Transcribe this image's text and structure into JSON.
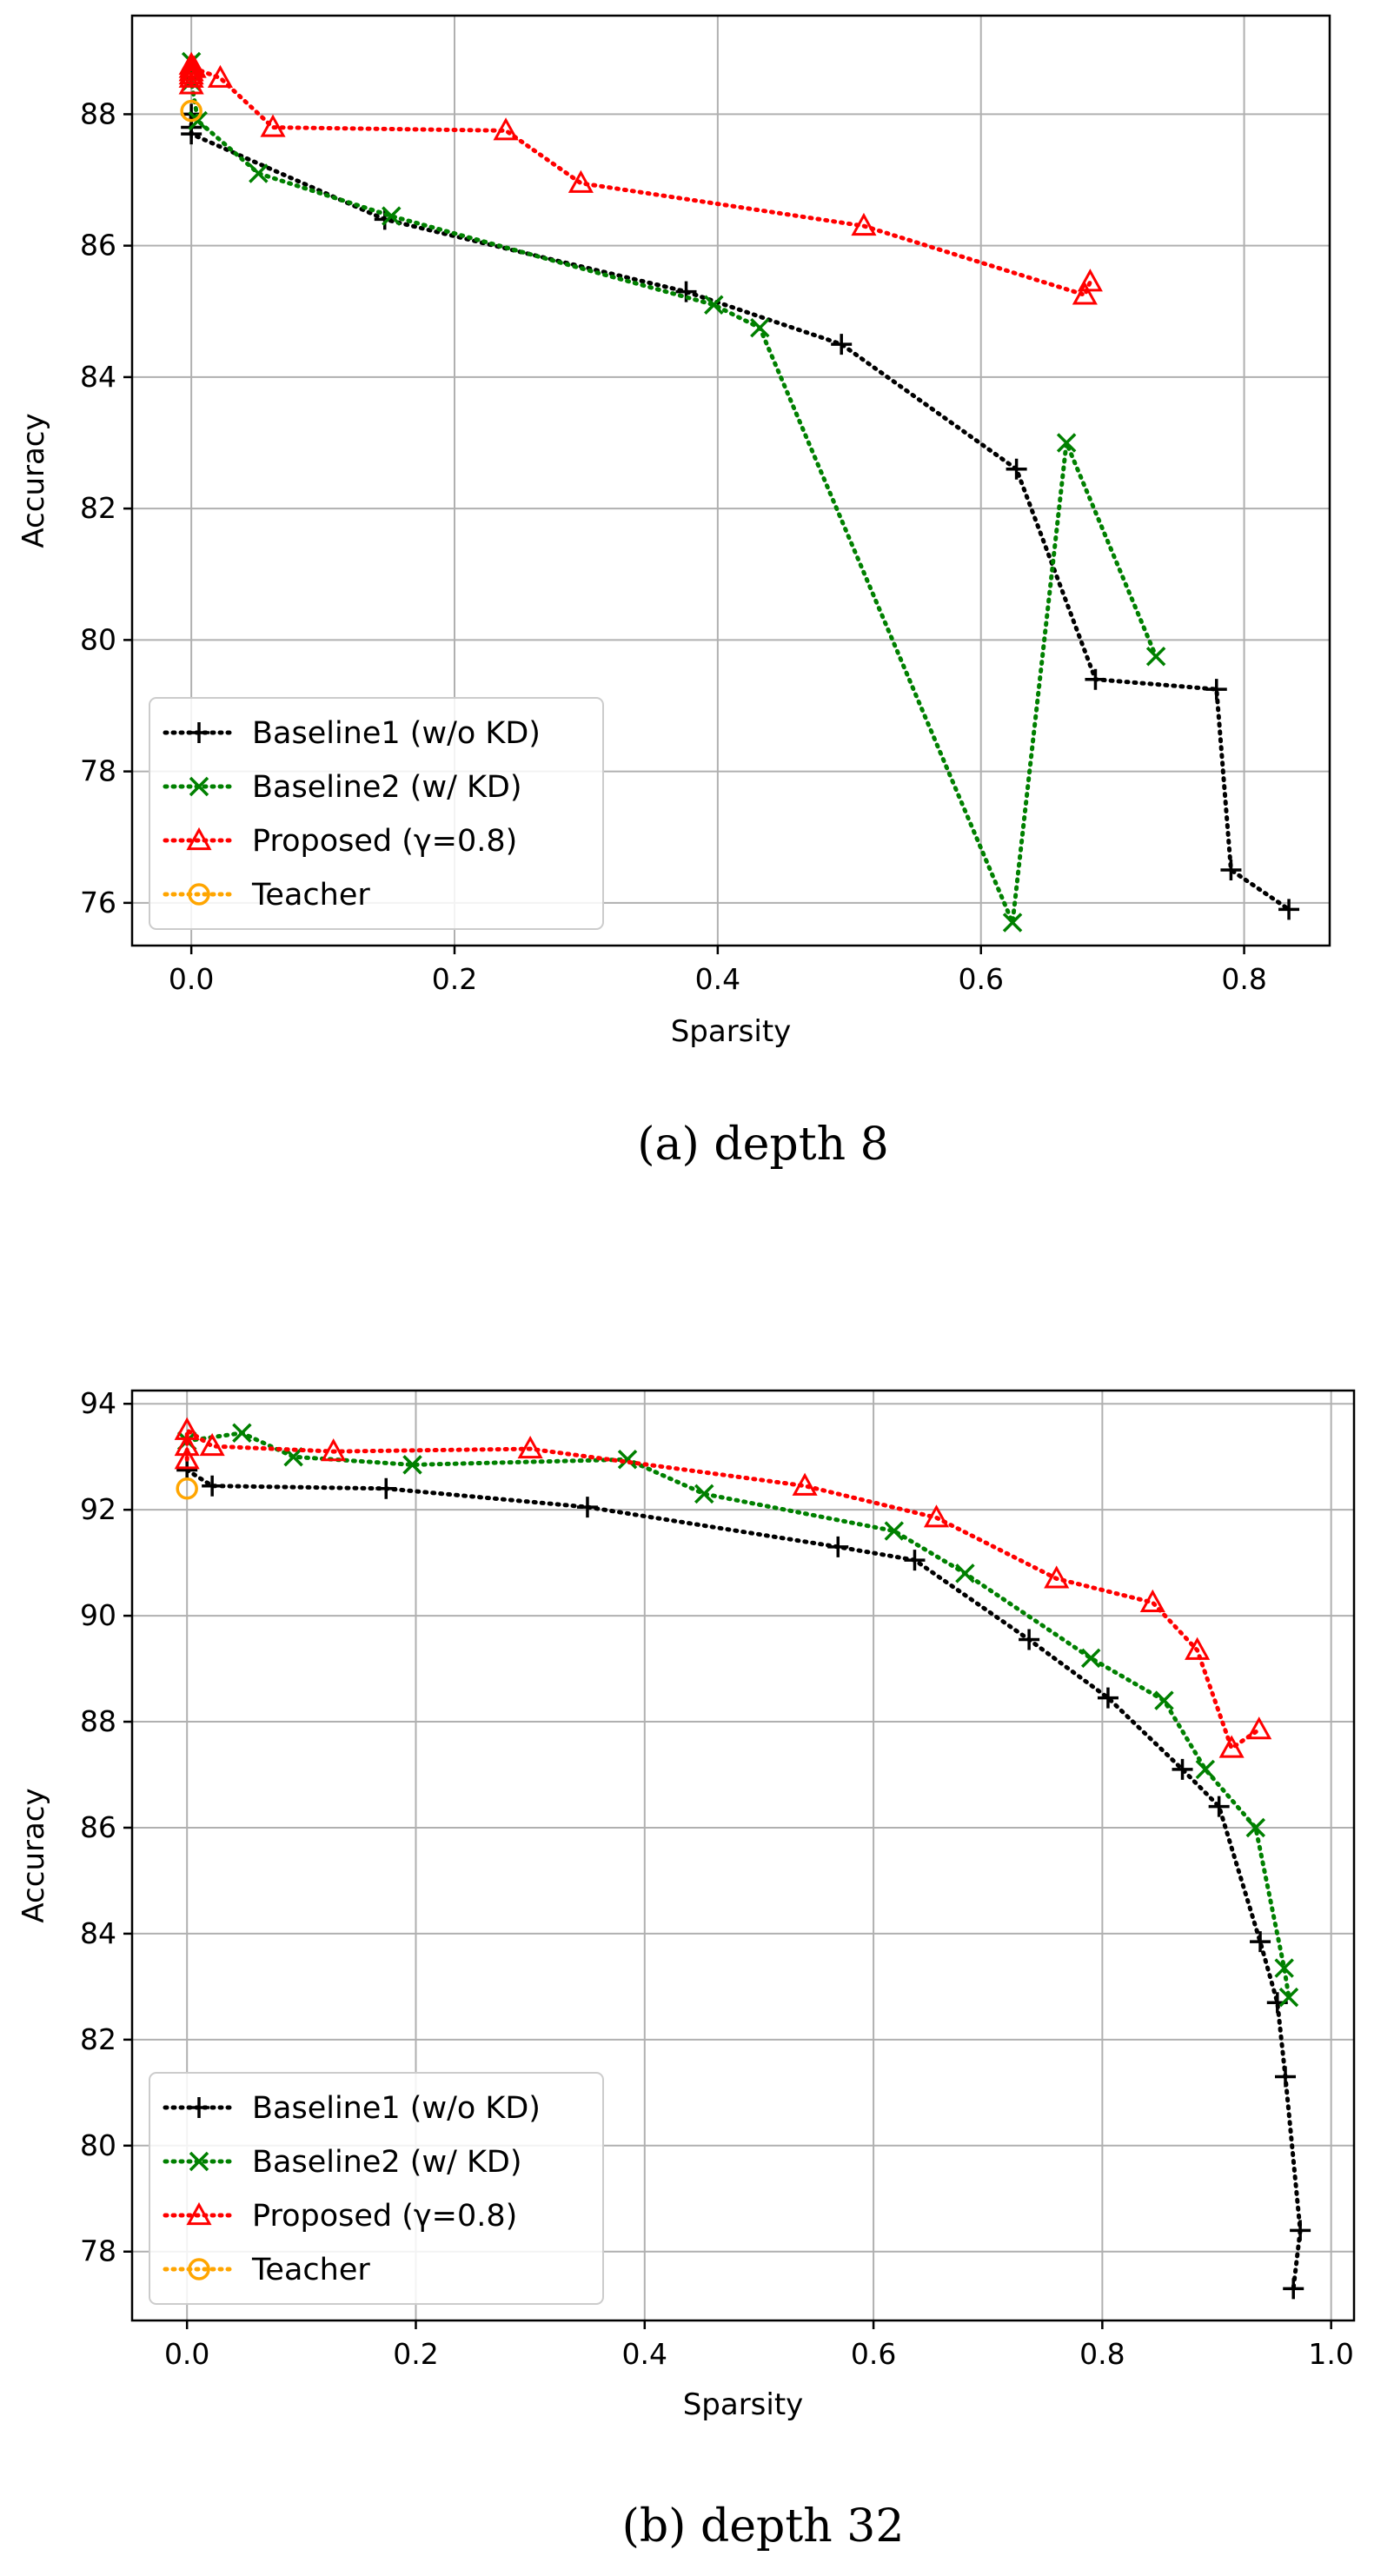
{
  "chart_data": [
    {
      "type": "line",
      "caption": "(a)  depth 8",
      "xlabel": "Sparsity",
      "ylabel": "Accuracy",
      "xlim": [
        -0.045,
        0.865
      ],
      "ylim": [
        75.35,
        89.5
      ],
      "xticks": [
        0.0,
        0.2,
        0.4,
        0.6,
        0.8
      ],
      "xtick_labels": [
        "0.0",
        "0.2",
        "0.4",
        "0.6",
        "0.8"
      ],
      "yticks": [
        76,
        78,
        80,
        82,
        84,
        86,
        88
      ],
      "ytick_labels": [
        "76",
        "78",
        "80",
        "82",
        "84",
        "86",
        "88"
      ],
      "grid": true,
      "legend_position": "lower-left",
      "series": [
        {
          "name": "Baseline1 (w/o KD)",
          "color": "#000000",
          "marker": "plus",
          "x": [
            0.0,
            0.0,
            0.0,
            0.147,
            0.376,
            0.494,
            0.627,
            0.687,
            0.779,
            0.79,
            0.834
          ],
          "y": [
            87.8,
            88.0,
            87.7,
            86.4,
            85.3,
            84.5,
            82.6,
            79.4,
            79.25,
            76.5,
            75.9
          ]
        },
        {
          "name": "Baseline2 (w/ KD)",
          "color": "#008000",
          "marker": "x",
          "x": [
            0.0,
            0.0,
            0.005,
            0.051,
            0.152,
            0.397,
            0.432,
            0.624,
            0.665,
            0.733
          ],
          "y": [
            88.8,
            88.5,
            87.9,
            87.1,
            86.45,
            85.1,
            84.75,
            75.7,
            83.0,
            79.75
          ]
        },
        {
          "name": "Proposed (γ=0.8)",
          "color": "#ff0000",
          "marker": "triangle",
          "x": [
            0.0,
            0.0,
            0.0,
            0.0,
            0.0,
            0.0,
            0.002,
            0.022,
            0.062,
            0.239,
            0.296,
            0.511,
            0.679,
            0.683
          ],
          "y": [
            88.45,
            88.55,
            88.6,
            88.65,
            88.7,
            88.75,
            88.7,
            88.55,
            87.8,
            87.75,
            86.95,
            86.3,
            85.25,
            85.45
          ]
        },
        {
          "name": "Teacher",
          "color": "#ffa500",
          "marker": "circle",
          "x": [
            0.0
          ],
          "y": [
            88.05
          ]
        }
      ]
    },
    {
      "type": "line",
      "caption": "(b)  depth 32",
      "xlabel": "Sparsity",
      "ylabel": "Accuracy",
      "xlim": [
        -0.048,
        1.02
      ],
      "ylim": [
        76.7,
        94.25
      ],
      "xticks": [
        0.0,
        0.2,
        0.4,
        0.6,
        0.8,
        1.0
      ],
      "xtick_labels": [
        "0.0",
        "0.2",
        "0.4",
        "0.6",
        "0.8",
        "1.0"
      ],
      "yticks": [
        78,
        80,
        82,
        84,
        86,
        88,
        90,
        92,
        94
      ],
      "ytick_labels": [
        "78",
        "80",
        "82",
        "84",
        "86",
        "88",
        "90",
        "92",
        "94"
      ],
      "grid": true,
      "legend_position": "lower-left",
      "series": [
        {
          "name": "Baseline1 (w/o KD)",
          "color": "#000000",
          "marker": "plus",
          "x": [
            0.0,
            0.022,
            0.174,
            0.35,
            0.569,
            0.636,
            0.736,
            0.805,
            0.87,
            0.902,
            0.938,
            0.953,
            0.96,
            0.973,
            0.967
          ],
          "y": [
            92.75,
            92.45,
            92.4,
            92.05,
            91.3,
            91.05,
            89.55,
            88.45,
            87.1,
            86.4,
            83.85,
            82.7,
            81.3,
            78.4,
            77.3
          ]
        },
        {
          "name": "Baseline2 (w/ KD)",
          "color": "#008000",
          "marker": "x",
          "x": [
            0.0,
            0.048,
            0.093,
            0.197,
            0.385,
            0.452,
            0.618,
            0.68,
            0.79,
            0.854,
            0.89,
            0.934,
            0.959,
            0.963
          ],
          "y": [
            93.3,
            93.45,
            93.0,
            92.85,
            92.95,
            92.3,
            91.6,
            90.8,
            89.2,
            88.4,
            87.1,
            86.0,
            83.35,
            82.8
          ]
        },
        {
          "name": "Proposed (γ=0.8)",
          "color": "#ff0000",
          "marker": "triangle",
          "x": [
            0.0,
            0.0,
            0.0,
            0.022,
            0.128,
            0.3,
            0.54,
            0.655,
            0.76,
            0.844,
            0.883,
            0.913,
            0.937
          ],
          "y": [
            92.95,
            93.2,
            93.5,
            93.2,
            93.1,
            93.15,
            92.45,
            91.85,
            90.7,
            90.25,
            89.35,
            87.5,
            87.85
          ]
        },
        {
          "name": "Teacher",
          "color": "#ffa500",
          "marker": "circle",
          "x": [
            0.0
          ],
          "y": [
            92.4
          ]
        }
      ]
    }
  ]
}
